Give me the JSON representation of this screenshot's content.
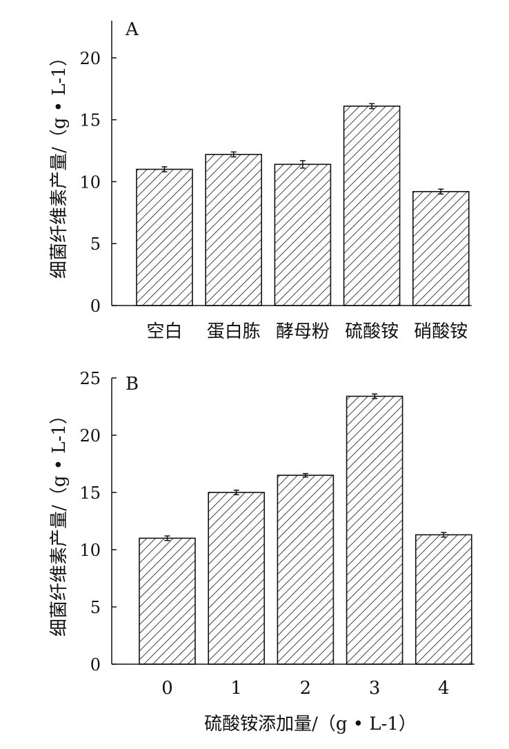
{
  "chart_data": [
    {
      "type": "bar",
      "panel_label": "A",
      "categories": [
        "空白",
        "蛋白胨",
        "酵母粉",
        "硫酸铵",
        "硝酸铵"
      ],
      "values": [
        11.0,
        12.2,
        11.4,
        16.1,
        9.2
      ],
      "errors": [
        0.2,
        0.2,
        0.3,
        0.2,
        0.2
      ],
      "ylabel": "细菌纤维素产量/（g • L-1）",
      "xlabel": "",
      "ylim": [
        0,
        23
      ],
      "yticks": [
        0,
        5,
        10,
        15,
        20
      ],
      "grid": false,
      "bar_fill": "diagonal-hatch",
      "color": "#111111"
    },
    {
      "type": "bar",
      "panel_label": "B",
      "categories": [
        "0",
        "1",
        "2",
        "3",
        "4"
      ],
      "values": [
        11.0,
        15.0,
        16.5,
        23.4,
        11.3
      ],
      "errors": [
        0.2,
        0.2,
        0.15,
        0.2,
        0.2
      ],
      "ylabel": "细菌纤维素产量/（g • L-1）",
      "xlabel": "硫酸铵添加量/（g • L-1）",
      "ylim": [
        0,
        25
      ],
      "yticks": [
        0,
        5,
        10,
        15,
        20,
        25
      ],
      "grid": false,
      "bar_fill": "diagonal-hatch",
      "color": "#111111"
    }
  ]
}
